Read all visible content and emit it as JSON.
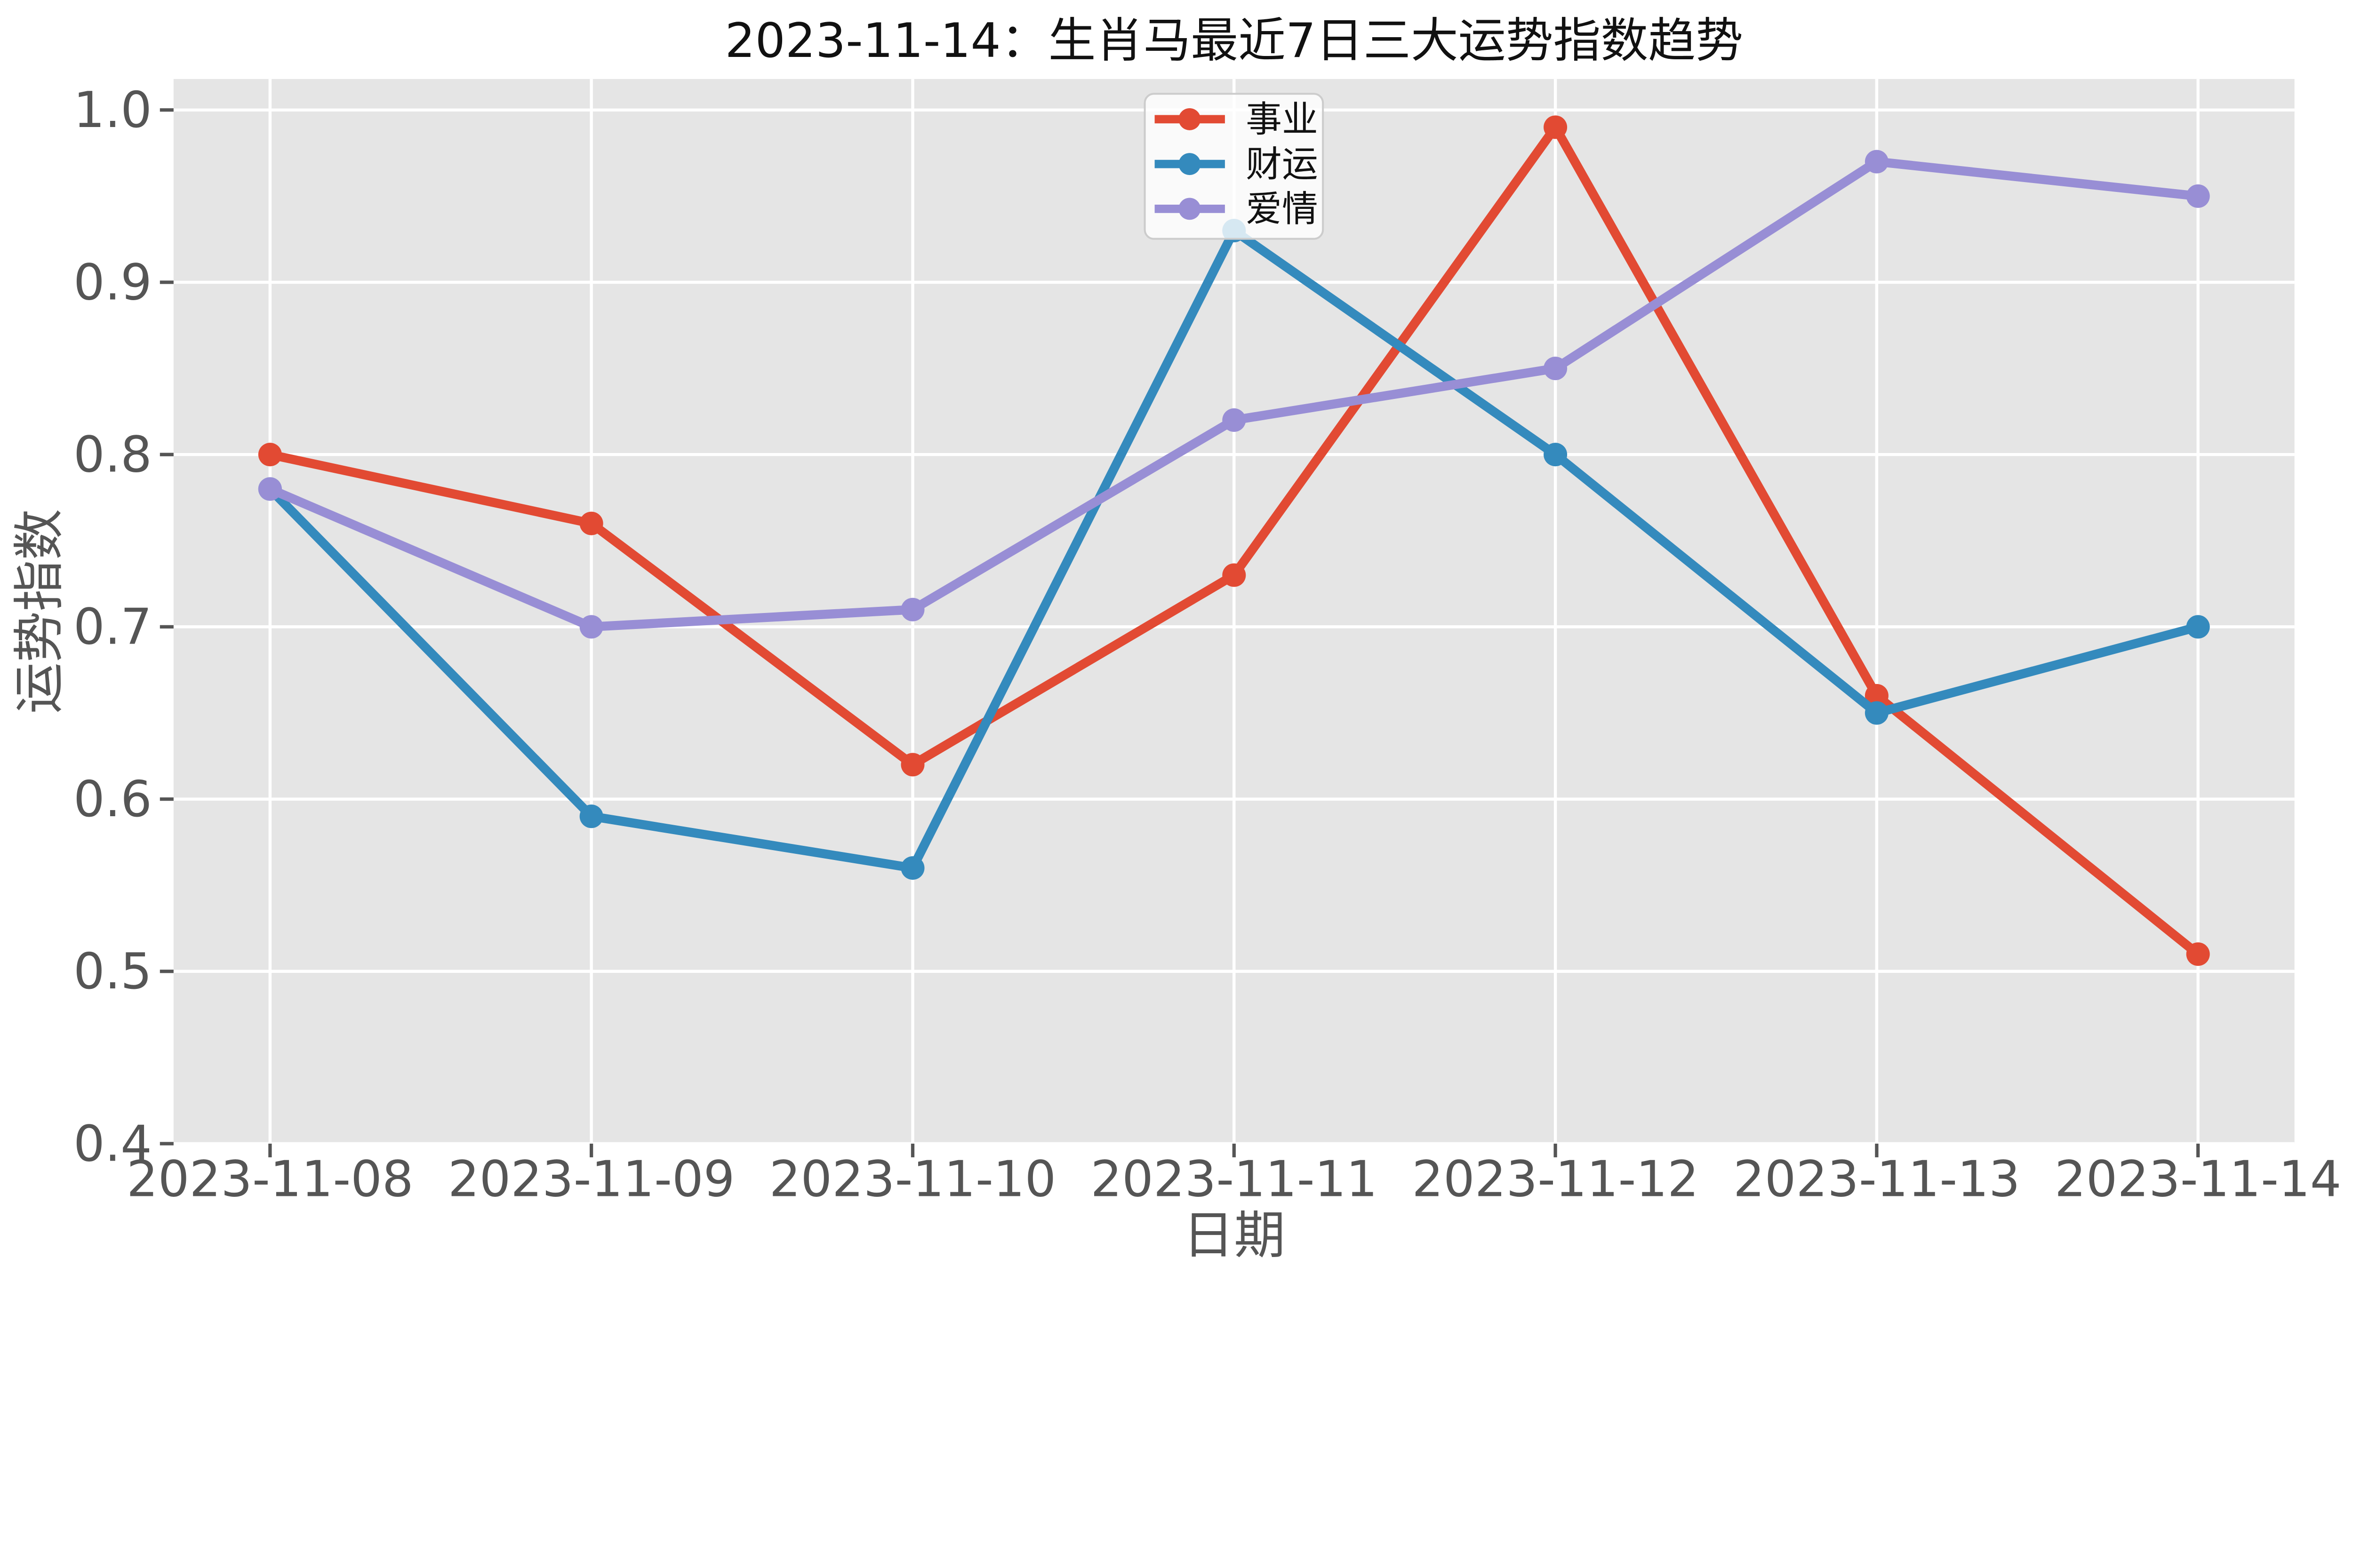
{
  "figure": {
    "title": "2023-11-14：生肖马最近7日三大运势指数趋势"
  },
  "chart_data": {
    "type": "line",
    "title": "2023-11-14：生肖马最近7日三大运势指数趋势",
    "xlabel": "日期",
    "ylabel": "运势指数",
    "categories": [
      "2023-11-08",
      "2023-11-09",
      "2023-11-10",
      "2023-11-11",
      "2023-11-12",
      "2023-11-13",
      "2023-11-14"
    ],
    "series": [
      {
        "key": "career",
        "name": "事业",
        "color": "#E24A33",
        "values": [
          0.8,
          0.76,
          0.62,
          0.73,
          0.99,
          0.66,
          0.51
        ]
      },
      {
        "key": "wealth",
        "name": "财运",
        "color": "#348ABD",
        "values": [
          0.78,
          0.59,
          0.56,
          0.93,
          0.8,
          0.65,
          0.7
        ]
      },
      {
        "key": "love",
        "name": "爱情",
        "color": "#988ED5",
        "values": [
          0.78,
          0.7,
          0.71,
          0.82,
          0.85,
          0.97,
          0.95
        ]
      }
    ],
    "ylim": [
      0.4,
      1.018
    ],
    "ytick_labels": [
      "0.4",
      "0.5",
      "0.6",
      "0.7",
      "0.8",
      "0.9",
      "1.0"
    ],
    "grid": true,
    "legend_position": "upper center",
    "colors": {
      "figure_bg": "#FFFFFF",
      "plot_bg": "#E5E5E5",
      "grid": "#FFFFFF",
      "tick": "#555555",
      "tick_label": "#555555",
      "axis_label": "#555555",
      "title": "#111111",
      "legend_text": "#111111",
      "legend_border": "#CCCCCC",
      "legend_bg": "rgba(255,255,255,0.8)"
    }
  }
}
